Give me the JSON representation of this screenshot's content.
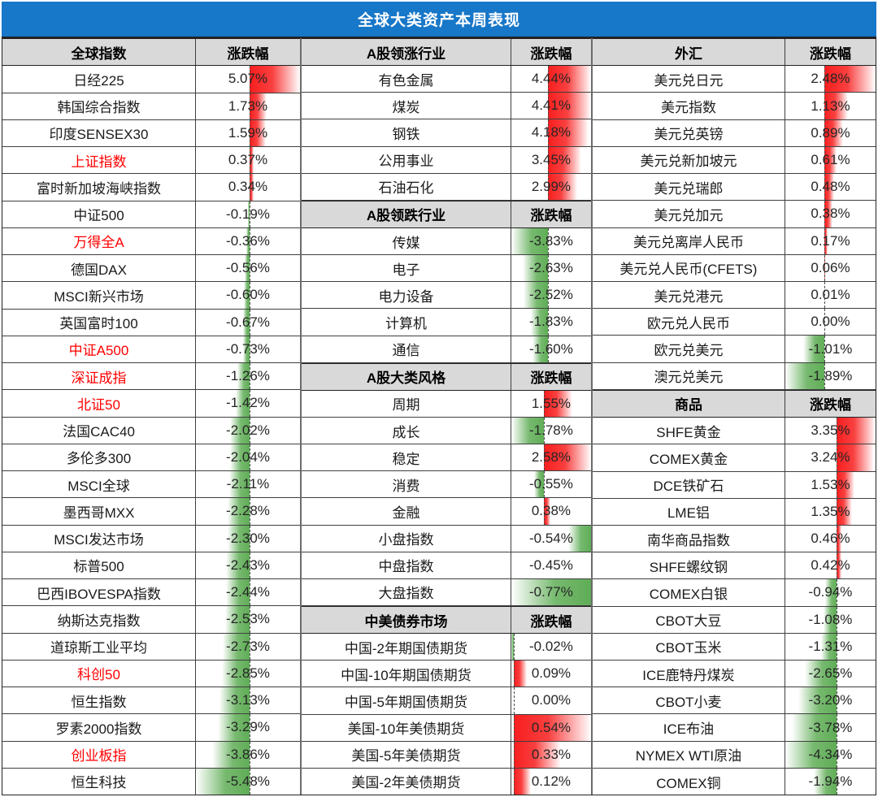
{
  "title": "全球大类资产本周表现",
  "colors": {
    "title_bg": "#1777C8",
    "header_bg": "#D9D9D9",
    "highlight_name": "#FF0000",
    "bar_positive": "#F81E1E",
    "bar_negative": "#5FAD56",
    "axis_line": "#4A4A4A",
    "border": "#3F3F3F"
  },
  "chart_data": {
    "type": "table",
    "title": "全球大类资产本周表现",
    "value_column": "涨跌幅",
    "groups": [
      {
        "name_width": 238,
        "pct_width": 130,
        "sections": [
          {
            "header": "全球指数",
            "change_label": "涨跌幅",
            "scale": {
              "min": -5.48,
              "max": 5.07
            },
            "rows": [
              {
                "n": "日经225",
                "v": 5.07,
                "d": "5.07%",
                "red": false
              },
              {
                "n": "韩国综合指数",
                "v": 1.73,
                "d": "1.73%",
                "red": false
              },
              {
                "n": "印度SENSEX30",
                "v": 1.59,
                "d": "1.59%",
                "red": false
              },
              {
                "n": "上证指数",
                "v": 0.37,
                "d": "0.37%",
                "red": true
              },
              {
                "n": "富时新加坡海峡指数",
                "v": 0.34,
                "d": "0.34%",
                "red": false
              },
              {
                "n": "中证500",
                "v": -0.19,
                "d": "-0.19%",
                "red": false
              },
              {
                "n": "万得全A",
                "v": -0.36,
                "d": "-0.36%",
                "red": true
              },
              {
                "n": "德国DAX",
                "v": -0.56,
                "d": "-0.56%",
                "red": false
              },
              {
                "n": "MSCI新兴市场",
                "v": -0.6,
                "d": "-0.60%",
                "red": false
              },
              {
                "n": "英国富时100",
                "v": -0.67,
                "d": "-0.67%",
                "red": false
              },
              {
                "n": "中证A500",
                "v": -0.73,
                "d": "-0.73%",
                "red": true
              },
              {
                "n": "深证成指",
                "v": -1.26,
                "d": "-1.26%",
                "red": true
              },
              {
                "n": "北证50",
                "v": -1.42,
                "d": "-1.42%",
                "red": true
              },
              {
                "n": "法国CAC40",
                "v": -2.02,
                "d": "-2.02%",
                "red": false
              },
              {
                "n": "多伦多300",
                "v": -2.04,
                "d": "-2.04%",
                "red": false
              },
              {
                "n": "MSCI全球",
                "v": -2.11,
                "d": "-2.11%",
                "red": false
              },
              {
                "n": "墨西哥MXX",
                "v": -2.28,
                "d": "-2.28%",
                "red": false
              },
              {
                "n": "MSCI发达市场",
                "v": -2.3,
                "d": "-2.30%",
                "red": false
              },
              {
                "n": "标普500",
                "v": -2.43,
                "d": "-2.43%",
                "red": false
              },
              {
                "n": "巴西IBOVESPA指数",
                "v": -2.44,
                "d": "-2.44%",
                "red": false
              },
              {
                "n": "纳斯达克指数",
                "v": -2.53,
                "d": "-2.53%",
                "red": false
              },
              {
                "n": "道琼斯工业平均",
                "v": -2.73,
                "d": "-2.73%",
                "red": false
              },
              {
                "n": "科创50",
                "v": -2.85,
                "d": "-2.85%",
                "red": true
              },
              {
                "n": "恒生指数",
                "v": -3.13,
                "d": "-3.13%",
                "red": false
              },
              {
                "n": "罗素2000指数",
                "v": -3.29,
                "d": "-3.29%",
                "red": false
              },
              {
                "n": "创业板指",
                "v": -3.86,
                "d": "-3.86%",
                "red": true
              },
              {
                "n": "恒生科技",
                "v": -5.48,
                "d": "-5.48%",
                "red": false
              }
            ]
          }
        ]
      },
      {
        "name_width": 258,
        "pct_width": 102,
        "sections": [
          {
            "header": "A股领涨行业",
            "change_label": "涨跌幅",
            "scale": {
              "min": -3.83,
              "max": 4.44
            },
            "rows": [
              {
                "n": "有色金属",
                "v": 4.44,
                "d": "4.44%",
                "red": false
              },
              {
                "n": "煤炭",
                "v": 4.41,
                "d": "4.41%",
                "red": false
              },
              {
                "n": "钢铁",
                "v": 4.18,
                "d": "4.18%",
                "red": false
              },
              {
                "n": "公用事业",
                "v": 3.45,
                "d": "3.45%",
                "red": false
              },
              {
                "n": "石油石化",
                "v": 2.99,
                "d": "2.99%",
                "red": false
              }
            ]
          },
          {
            "header": "A股领跌行业",
            "change_label": "涨跌幅",
            "scale": {
              "min": -3.83,
              "max": 4.44
            },
            "rows": [
              {
                "n": "传媒",
                "v": -3.83,
                "d": "-3.83%",
                "red": false
              },
              {
                "n": "电子",
                "v": -2.63,
                "d": "-2.63%",
                "red": false
              },
              {
                "n": "电力设备",
                "v": -2.52,
                "d": "-2.52%",
                "red": false
              },
              {
                "n": "计算机",
                "v": -1.83,
                "d": "-1.83%",
                "red": false
              },
              {
                "n": "通信",
                "v": -1.6,
                "d": "-1.60%",
                "red": false
              }
            ]
          },
          {
            "header": "A股大类风格",
            "change_label": "涨跌幅",
            "scale": {
              "min": -1.78,
              "max": 2.58
            },
            "rows": [
              {
                "n": "周期",
                "v": 1.55,
                "d": "1.55%",
                "red": false
              },
              {
                "n": "成长",
                "v": -1.78,
                "d": "-1.78%",
                "red": false
              },
              {
                "n": "稳定",
                "v": 2.58,
                "d": "2.58%",
                "red": false
              },
              {
                "n": "消费",
                "v": -0.55,
                "d": "-0.55%",
                "red": false
              },
              {
                "n": "金融",
                "v": 0.38,
                "d": "0.38%",
                "red": false
              }
            ]
          },
          {
            "header": null,
            "change_label": null,
            "scale": {
              "min": -0.77,
              "max": -0.45,
              "anchor": "right"
            },
            "rows": [
              {
                "n": "小盘指数",
                "v": -0.54,
                "d": "-0.54%",
                "red": false
              },
              {
                "n": "中盘指数",
                "v": -0.45,
                "d": "-0.45%",
                "red": false
              },
              {
                "n": "大盘指数",
                "v": -0.77,
                "d": "-0.77%",
                "red": false
              }
            ]
          },
          {
            "header": "中美债券市场",
            "change_label": "涨跌幅",
            "scale": {
              "min": -0.02,
              "max": 0.54
            },
            "rows": [
              {
                "n": "中国-2年期国债期货",
                "v": -0.02,
                "d": "-0.02%",
                "red": false
              },
              {
                "n": "中国-10年期国债期货",
                "v": 0.09,
                "d": "0.09%",
                "red": false
              },
              {
                "n": "中国-5年期国债期货",
                "v": 0.0,
                "d": "0.00%",
                "red": false
              },
              {
                "n": "美国-10年美债期货",
                "v": 0.54,
                "d": "0.54%",
                "red": false
              },
              {
                "n": "美国-5年美债期货",
                "v": 0.33,
                "d": "0.33%",
                "red": false
              },
              {
                "n": "美国-2年美债期货",
                "v": 0.12,
                "d": "0.12%",
                "red": false
              }
            ]
          }
        ]
      },
      {
        "name_width": 237,
        "pct_width": 115,
        "sections": [
          {
            "header": "外汇",
            "change_label": "涨跌幅",
            "scale": {
              "min": -1.89,
              "max": 2.48
            },
            "rows": [
              {
                "n": "美元兑日元",
                "v": 2.48,
                "d": "2.48%",
                "red": false
              },
              {
                "n": "美元指数",
                "v": 1.13,
                "d": "1.13%",
                "red": false
              },
              {
                "n": "美元兑英镑",
                "v": 0.89,
                "d": "0.89%",
                "red": false
              },
              {
                "n": "美元兑新加坡元",
                "v": 0.61,
                "d": "0.61%",
                "red": false
              },
              {
                "n": "美元兑瑞郎",
                "v": 0.48,
                "d": "0.48%",
                "red": false
              },
              {
                "n": "美元兑加元",
                "v": 0.38,
                "d": "0.38%",
                "red": false
              },
              {
                "n": "美元兑离岸人民币",
                "v": 0.17,
                "d": "0.17%",
                "red": false
              },
              {
                "n": "美元兑人民币(CFETS)",
                "v": 0.06,
                "d": "0.06%",
                "red": false
              },
              {
                "n": "美元兑港元",
                "v": 0.01,
                "d": "0.01%",
                "red": false
              },
              {
                "n": "欧元兑人民币",
                "v": 0.0,
                "d": "0.00%",
                "red": false
              },
              {
                "n": "欧元兑美元",
                "v": -1.01,
                "d": "-1.01%",
                "red": false
              },
              {
                "n": "澳元兑美元",
                "v": -1.89,
                "d": "-1.89%",
                "red": false
              }
            ]
          },
          {
            "header": "商品",
            "change_label": "涨跌幅",
            "scale": {
              "min": -4.34,
              "max": 3.35
            },
            "rows": [
              {
                "n": "SHFE黄金",
                "v": 3.35,
                "d": "3.35%",
                "red": false
              },
              {
                "n": "COMEX黄金",
                "v": 3.24,
                "d": "3.24%",
                "red": false
              },
              {
                "n": "DCE铁矿石",
                "v": 1.53,
                "d": "1.53%",
                "red": false
              },
              {
                "n": "LME铝",
                "v": 1.35,
                "d": "1.35%",
                "red": false
              },
              {
                "n": "南华商品指数",
                "v": 0.46,
                "d": "0.46%",
                "red": false
              },
              {
                "n": "SHFE螺纹钢",
                "v": 0.42,
                "d": "0.42%",
                "red": false
              },
              {
                "n": "COMEX白银",
                "v": -0.94,
                "d": "-0.94%",
                "red": false
              },
              {
                "n": "CBOT大豆",
                "v": -1.08,
                "d": "-1.08%",
                "red": false
              },
              {
                "n": "CBOT玉米",
                "v": -1.31,
                "d": "-1.31%",
                "red": false
              },
              {
                "n": "ICE鹿特丹煤炭",
                "v": -2.65,
                "d": "-2.65%",
                "red": false
              },
              {
                "n": "CBOT小麦",
                "v": -3.2,
                "d": "-3.20%",
                "red": false
              },
              {
                "n": "ICE布油",
                "v": -3.78,
                "d": "-3.78%",
                "red": false
              },
              {
                "n": "NYMEX WTI原油",
                "v": -4.34,
                "d": "-4.34%",
                "red": false
              },
              {
                "n": "COMEX铜",
                "v": -1.94,
                "d": "-1.94%",
                "red": false
              }
            ]
          }
        ]
      }
    ]
  }
}
